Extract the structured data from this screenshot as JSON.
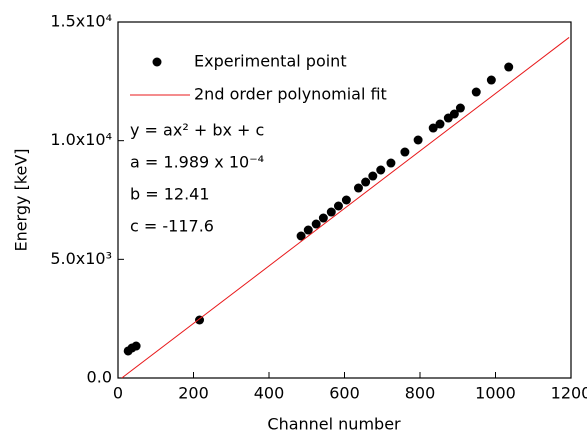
{
  "chart_data": {
    "type": "scatter",
    "xlabel": "Channel number",
    "ylabel": "Energy [keV]",
    "xlim": [
      0,
      1200
    ],
    "ylim": [
      0,
      15000
    ],
    "xticks": [
      0,
      200,
      400,
      600,
      800,
      1000,
      1200
    ],
    "yticks": [
      {
        "value": 0,
        "label": "0.0"
      },
      {
        "value": 5000,
        "label": "5.0x10³"
      },
      {
        "value": 10000,
        "label": "1.0x10⁴"
      },
      {
        "value": 15000,
        "label": "1.5x10⁴"
      }
    ],
    "annotations": [
      "y = ax² + bx + c",
      "a = 1.989 x 10⁻⁴",
      "b = 12.41",
      "c = -117.6"
    ],
    "series": [
      {
        "name": "Experimental point",
        "color": "#000000",
        "mode": "markers",
        "x": [
          27,
          37,
          48,
          216,
          485,
          504,
          525,
          544,
          565,
          584,
          605,
          637,
          656,
          675,
          696,
          723,
          760,
          795,
          835,
          853,
          875,
          891,
          907,
          949,
          989,
          1035
        ],
        "values": [
          1138,
          1264,
          1348,
          2444,
          5983,
          6235,
          6488,
          6741,
          6994,
          7247,
          7500,
          8005,
          8258,
          8511,
          8764,
          9058,
          9522,
          10028,
          10533,
          10702,
          10954,
          11123,
          11375,
          12049,
          12555,
          13102
        ]
      },
      {
        "name": "2nd order polynomial fit",
        "color": "#e8191b",
        "mode": "line",
        "x": [
          10,
          1195
        ],
        "values": [
          0,
          14350
        ]
      }
    ]
  }
}
